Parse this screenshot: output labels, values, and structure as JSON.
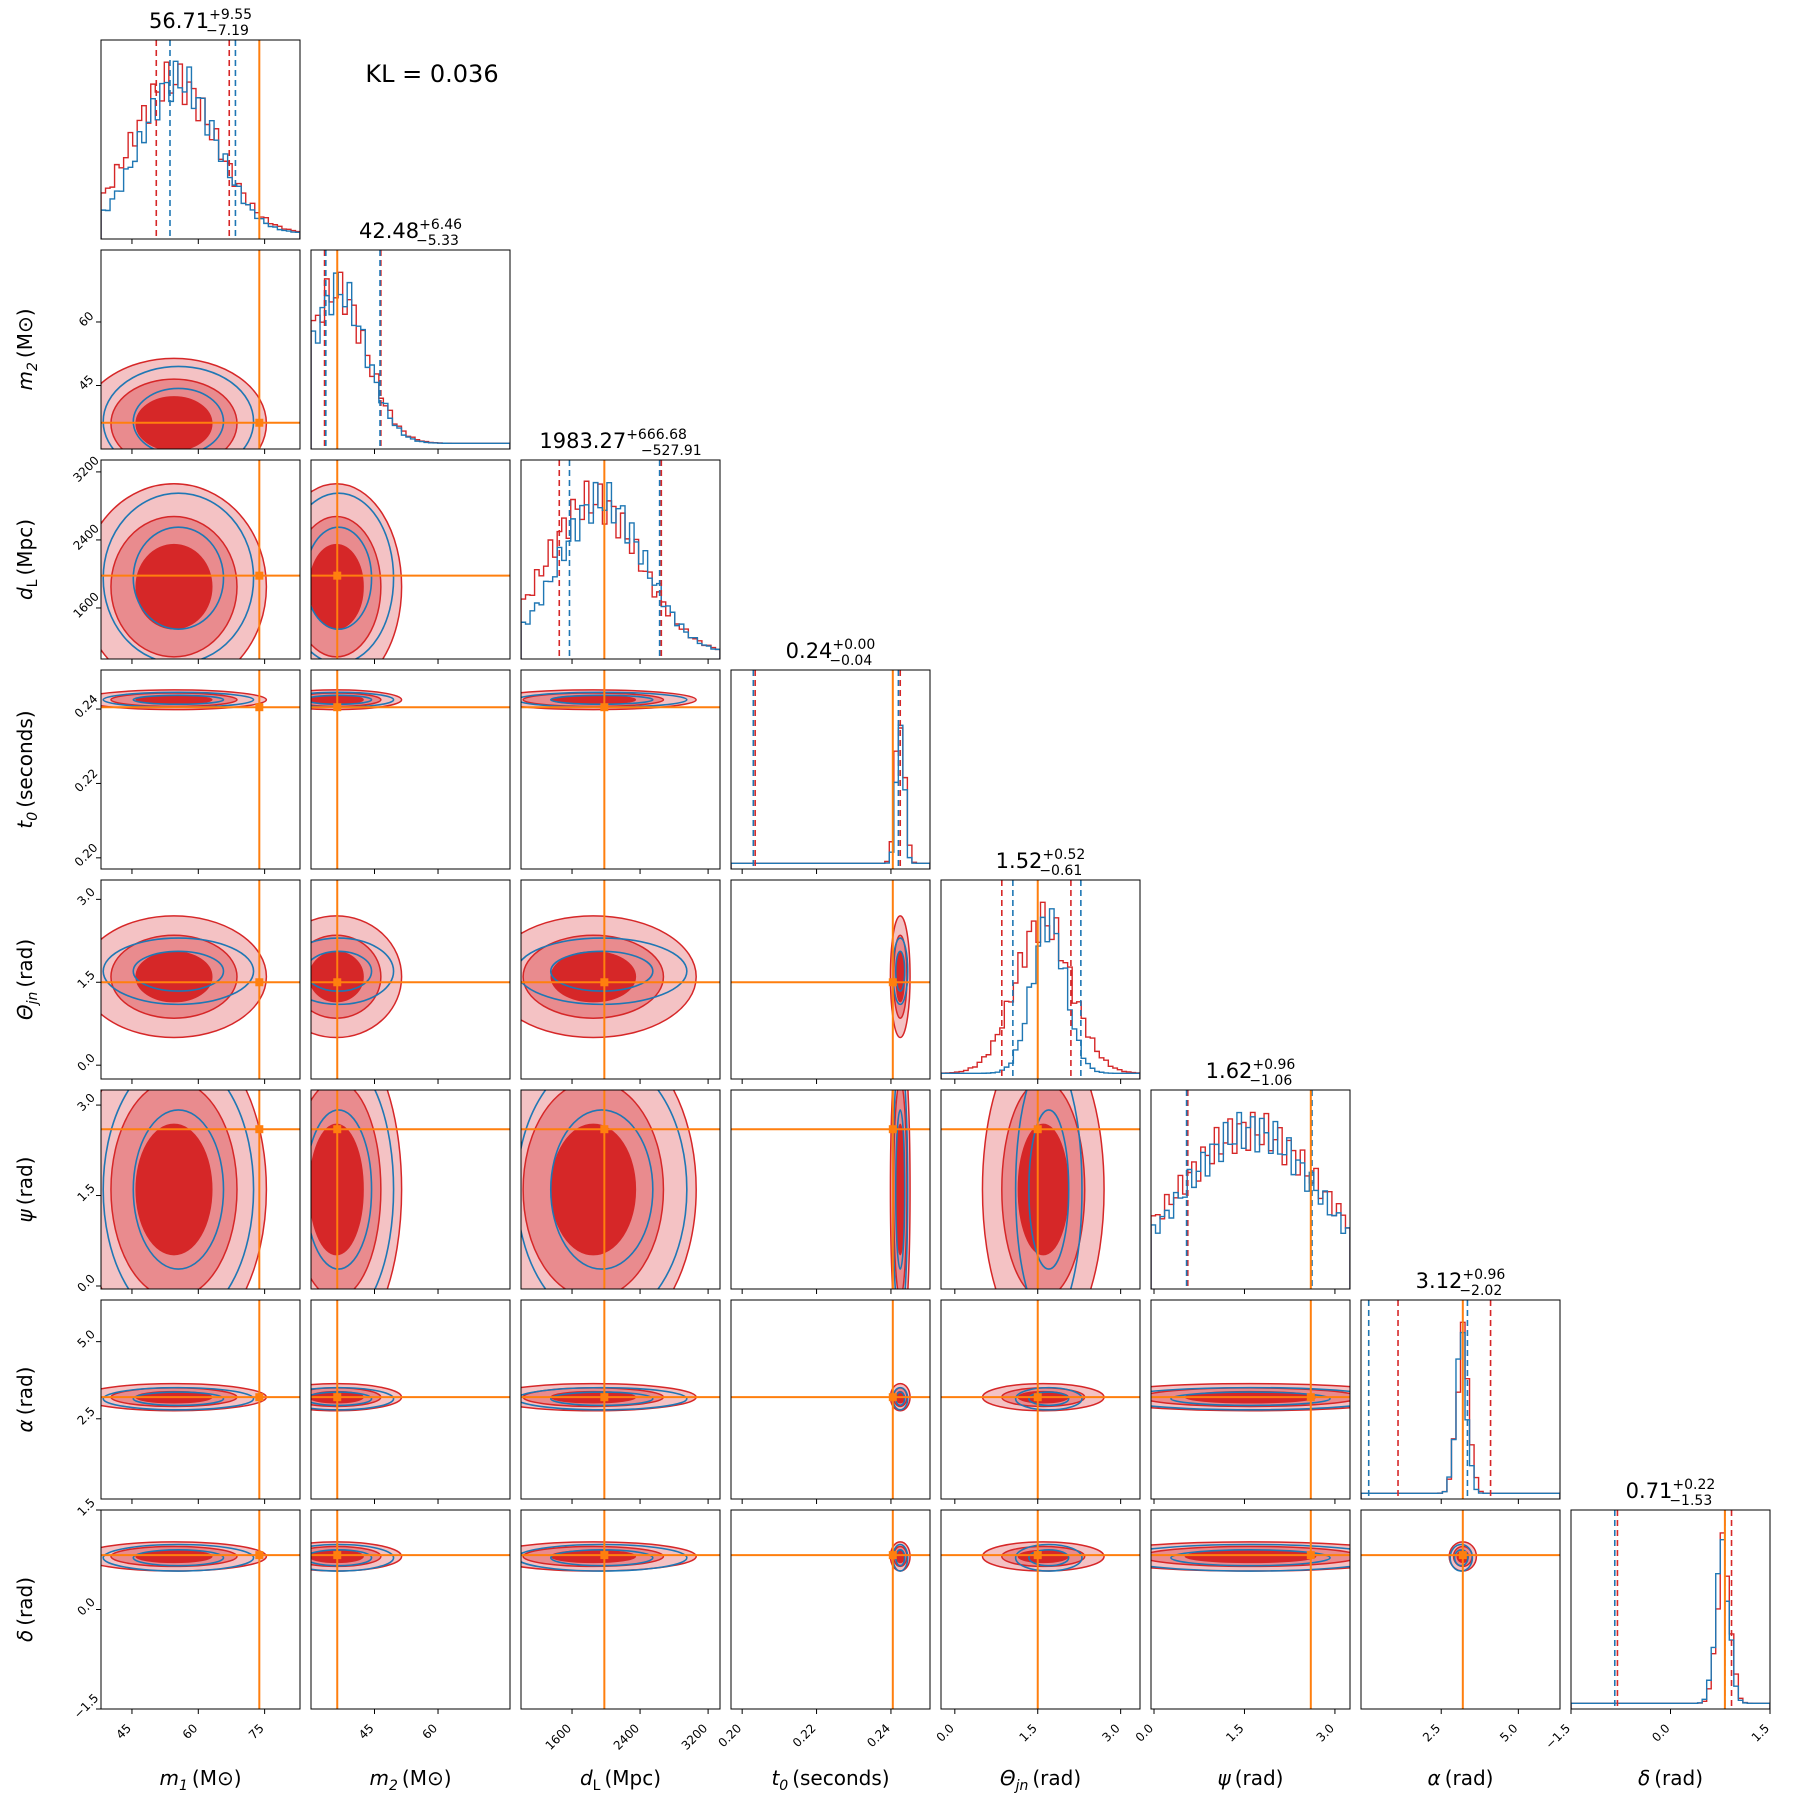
{
  "annotation": "KL = 0.036",
  "colors": {
    "posterior_a": "#d62728",
    "posterior_a_fill_1": "#f4c2c4",
    "posterior_a_fill_2": "#e98b8e",
    "posterior_b": "#1f77b4",
    "truth": "#ff7f0e",
    "frame": "#000000"
  },
  "chart_data": {
    "type": "corner",
    "title": "",
    "parameters": [
      {
        "key": "m1",
        "label_main": "m",
        "label_sub": "1",
        "label_unit": "(M⊙)",
        "range": [
          38,
          83
        ],
        "ticks": [
          45,
          60,
          75
        ],
        "tick_labels": [
          "45",
          "60",
          "75"
        ],
        "median": "56.71",
        "plus": "+9.55",
        "minus": "−7.19",
        "truth": 73.8,
        "quantiles_a": [
          50.5,
          67.0
        ],
        "quantiles_b": [
          53.6,
          68.4
        ],
        "peak_a": 54.5,
        "width_a": 9.5,
        "peak_b": 55.5,
        "width_b": 8.5
      },
      {
        "key": "m2",
        "label_main": "m",
        "label_sub": "2",
        "label_unit": "(M⊙)",
        "range": [
          30,
          77
        ],
        "ticks": [
          45,
          60
        ],
        "tick_labels": [
          "45",
          "60"
        ],
        "median": "42.48",
        "plus": "+6.46",
        "minus": "−5.33",
        "truth": 36.2,
        "quantiles_a": [
          33.2,
          46.5
        ],
        "quantiles_b": [
          33.5,
          46.3
        ],
        "peak_a": 36.0,
        "width_a": 7.0,
        "peak_b": 36.5,
        "width_b": 6.5
      },
      {
        "key": "dL",
        "label_main": "d",
        "label_sub": "L",
        "label_unit": "(Mpc)",
        "range": [
          1000,
          3340
        ],
        "ticks": [
          1600,
          2400,
          3200
        ],
        "tick_labels": [
          "1600",
          "2400",
          "3200"
        ],
        "median": "1983.27",
        "plus": "+666.68",
        "minus": "−527.91",
        "truth": 1980,
        "quantiles_a": [
          1450,
          2650
        ],
        "quantiles_b": [
          1570,
          2630
        ],
        "peak_a": 1850,
        "width_a": 550,
        "peak_b": 1950,
        "width_b": 500
      },
      {
        "key": "t0",
        "label_main": "t",
        "label_sub": "0",
        "label_unit": "(seconds)",
        "range": [
          0.197,
          0.2505
        ],
        "ticks": [
          0.2,
          0.22,
          0.24
        ],
        "tick_labels": [
          "0.20",
          "0.22",
          "0.24"
        ],
        "median": "0.24",
        "plus": "+0.00",
        "minus": "−0.04",
        "truth": 0.2405,
        "quantiles_a": [
          0.2035,
          0.2425
        ],
        "quantiles_b": [
          0.203,
          0.242
        ],
        "peak_a": 0.2425,
        "width_a": 0.0012,
        "peak_b": 0.2425,
        "width_b": 0.001
      },
      {
        "key": "thetajn",
        "label_main": "Θ",
        "label_sub": "jn",
        "label_unit": "(rad)",
        "range": [
          -0.25,
          3.35
        ],
        "ticks": [
          0.0,
          1.5,
          3.0
        ],
        "tick_labels": [
          "0.0",
          "1.5",
          "3.0"
        ],
        "median": "1.52",
        "plus": "+0.52",
        "minus": "−0.61",
        "truth": 1.5,
        "quantiles_a": [
          0.85,
          2.1
        ],
        "quantiles_b": [
          1.05,
          2.28
        ],
        "peak_a": 1.6,
        "width_a": 0.5,
        "peak_b": 1.7,
        "width_b": 0.3
      },
      {
        "key": "psi",
        "label_main": "ψ",
        "label_sub": "",
        "label_unit": "(rad)",
        "range": [
          -0.05,
          3.25
        ],
        "ticks": [
          0.0,
          1.5,
          3.0
        ],
        "tick_labels": [
          "0.0",
          "1.5",
          "3.0"
        ],
        "median": "1.62",
        "plus": "+0.96",
        "minus": "−1.06",
        "truth": 2.6,
        "quantiles_a": [
          0.56,
          2.6
        ],
        "quantiles_b": [
          0.54,
          2.62
        ],
        "peak_a": 1.6,
        "width_a": 1.2,
        "peak_b": 1.6,
        "width_b": 1.1
      },
      {
        "key": "alpha",
        "label_main": "α",
        "label_sub": "",
        "label_unit": "(rad)",
        "range": [
          -0.1,
          6.35
        ],
        "ticks": [
          2.5,
          5.0
        ],
        "tick_labels": [
          "2.5",
          "5.0"
        ],
        "median": "3.12",
        "plus": "+0.96",
        "minus": "−2.02",
        "truth": 3.2,
        "quantiles_a": [
          1.1,
          4.1
        ],
        "quantiles_b": [
          0.15,
          3.35
        ],
        "peak_a": 3.2,
        "width_a": 0.2,
        "peak_b": 3.15,
        "width_b": 0.18
      },
      {
        "key": "delta",
        "label_main": "δ",
        "label_sub": "",
        "label_unit": "(rad)",
        "range": [
          -1.5,
          1.5
        ],
        "ticks": [
          -1.5,
          0.0,
          1.5
        ],
        "tick_labels": [
          "−1.5",
          "0.0",
          "1.5"
        ],
        "median": "0.71",
        "plus": "+0.22",
        "minus": "−1.53",
        "truth": 0.82,
        "quantiles_a": [
          -0.8,
          0.92
        ],
        "quantiles_b": [
          -0.84,
          0.82
        ],
        "peak_a": 0.8,
        "width_a": 0.1,
        "peak_b": 0.78,
        "width_b": 0.1
      }
    ]
  }
}
